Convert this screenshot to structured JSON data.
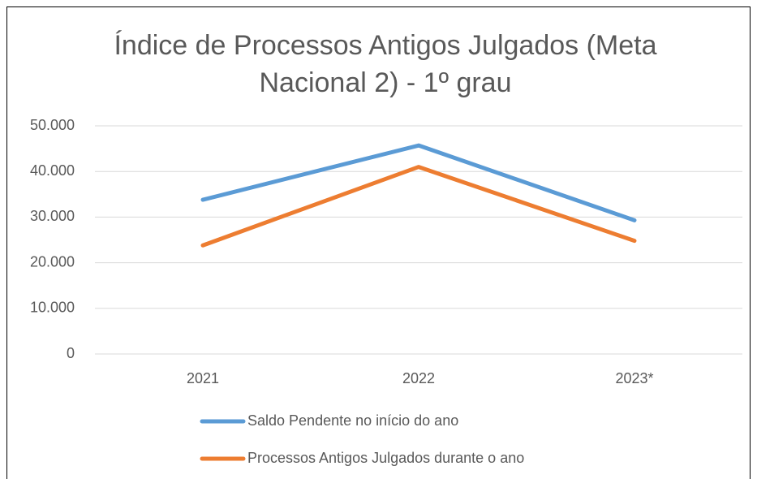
{
  "chart_data": {
    "type": "line",
    "title": [
      "Índice de Processos Antigos Julgados (Meta",
      "Nacional 2) - 1º grau"
    ],
    "categories": [
      "2021",
      "2022",
      "2023*"
    ],
    "series": [
      {
        "name": "Saldo Pendente no início do ano",
        "color": "#5b9bd5",
        "values": [
          33800,
          45700,
          29300
        ]
      },
      {
        "name": "Processos Antigos Julgados durante o ano",
        "color": "#ed7d31",
        "values": [
          23800,
          41000,
          24800
        ]
      }
    ],
    "ylim": [
      0,
      50000
    ],
    "yticks": [
      0,
      {
        "value": 10000,
        "label": "10.000"
      },
      {
        "value": 20000,
        "label": "20.000"
      },
      {
        "value": 30000,
        "label": "30.000"
      },
      {
        "value": 40000,
        "label": "40.000"
      },
      {
        "value": 50000,
        "label": "50.000"
      }
    ],
    "grid": true,
    "legend": "bottom"
  }
}
